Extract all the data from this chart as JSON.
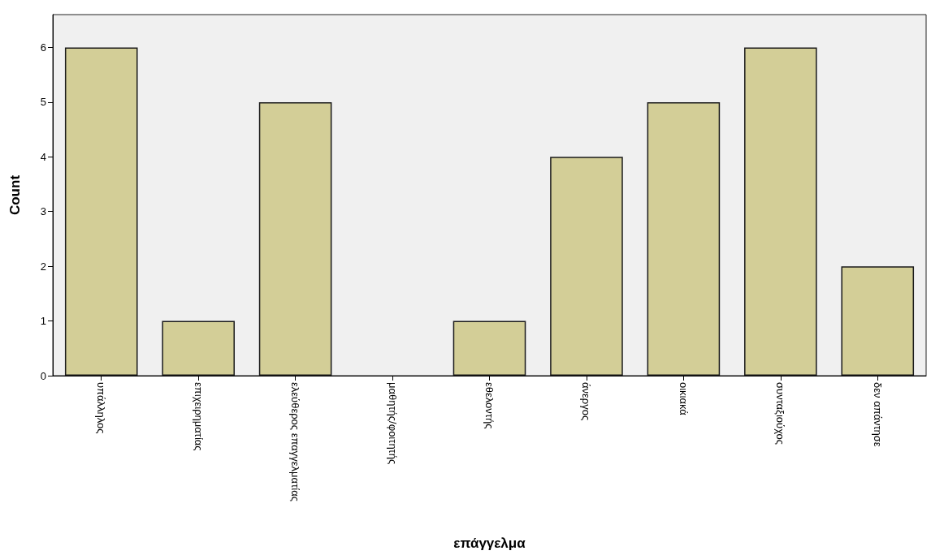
{
  "chart_data": {
    "type": "bar",
    "xlabel": "επάγγελμα",
    "ylabel": "Count",
    "categories": [
      "υπάλληλος",
      "επιχειρηματίας",
      "ελεύθερος επαγγελματίας",
      "μαθητής/φοιτητής",
      "εθελοντής",
      "άνεργος",
      "οικιακά",
      "συνταξιούχος",
      "δεν απάντησε"
    ],
    "values": [
      6,
      1,
      5,
      0,
      1,
      4,
      5,
      6,
      2
    ],
    "color": "#d3ce97",
    "ylim": [
      0,
      6.6
    ],
    "yticks": [
      0,
      1,
      2,
      3,
      4,
      5,
      6
    ],
    "grid": false
  }
}
